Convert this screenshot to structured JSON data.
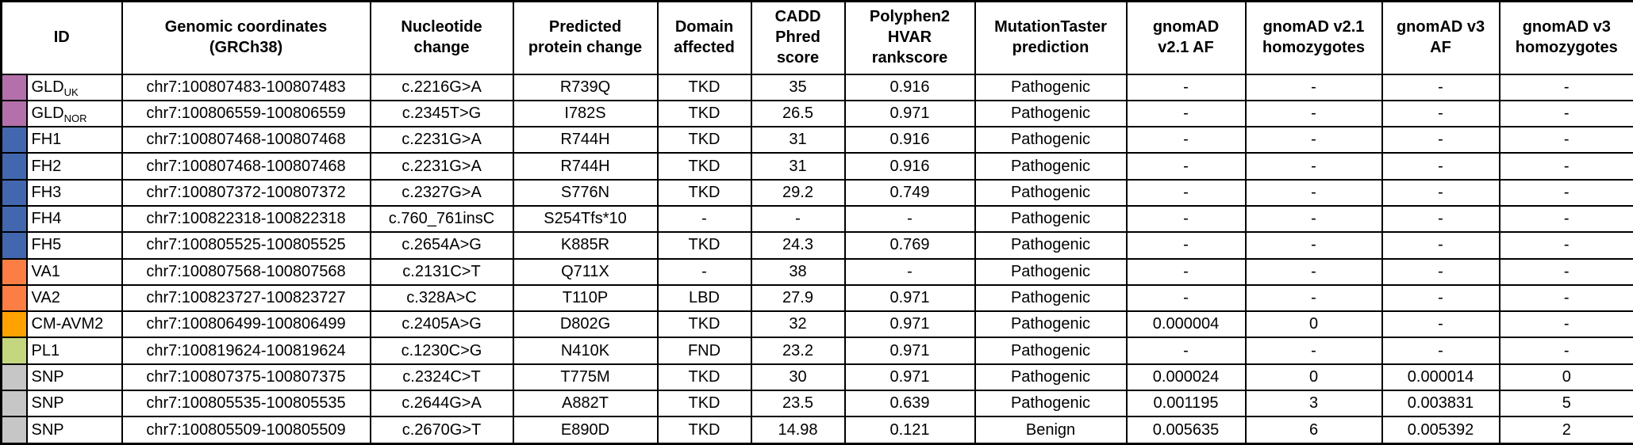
{
  "table": {
    "columns": [
      {
        "key": "id",
        "label": "ID"
      },
      {
        "key": "coords",
        "label": "Genomic coordinates\n(GRCh38)"
      },
      {
        "key": "nucleotide",
        "label": "Nucleotide\nchange"
      },
      {
        "key": "protein",
        "label": "Predicted\nprotein change"
      },
      {
        "key": "domain",
        "label": "Domain\naffected"
      },
      {
        "key": "cadd",
        "label": "CADD\nPhred\nscore"
      },
      {
        "key": "polyphen",
        "label": "Polyphen2\nHVAR\nrankscore"
      },
      {
        "key": "mutationtaster",
        "label": "MutationTaster\nprediction"
      },
      {
        "key": "gnomad_v21_af",
        "label": "gnomAD\nv2.1 AF"
      },
      {
        "key": "gnomad_v21_hom",
        "label": "gnomAD v2.1\nhomozygotes"
      },
      {
        "key": "gnomad_v3_af",
        "label": "gnomAD v3\nAF"
      },
      {
        "key": "gnomad_v3_hom",
        "label": "gnomAD v3\nhomozygotes"
      }
    ],
    "group_colors": {
      "GLD": "#b470ab",
      "FH": "#4267ae",
      "VA": "#fd7e45",
      "CM-AVM2": "#ffa200",
      "PL": "#c4d77f",
      "SNP": "#c6c6c6"
    },
    "rows": [
      {
        "color": "#b470ab",
        "id": "GLD",
        "id_sub": "UK",
        "coords": "chr7:100807483-100807483",
        "nucleotide": "c.2216G>A",
        "protein": "R739Q",
        "domain": "TKD",
        "cadd": "35",
        "polyphen": "0.916",
        "mutationtaster": "Pathogenic",
        "gnomad_v21_af": "-",
        "gnomad_v21_hom": "-",
        "gnomad_v3_af": "-",
        "gnomad_v3_hom": "-"
      },
      {
        "color": "#b470ab",
        "id": "GLD",
        "id_sub": "NOR",
        "coords": "chr7:100806559-100806559",
        "nucleotide": "c.2345T>G",
        "protein": "I782S",
        "domain": "TKD",
        "cadd": "26.5",
        "polyphen": "0.971",
        "mutationtaster": "Pathogenic",
        "gnomad_v21_af": "-",
        "gnomad_v21_hom": "-",
        "gnomad_v3_af": "-",
        "gnomad_v3_hom": "-"
      },
      {
        "color": "#4267ae",
        "id": "FH1",
        "id_sub": "",
        "coords": "chr7:100807468-100807468",
        "nucleotide": "c.2231G>A",
        "protein": "R744H",
        "domain": "TKD",
        "cadd": "31",
        "polyphen": "0.916",
        "mutationtaster": "Pathogenic",
        "gnomad_v21_af": "-",
        "gnomad_v21_hom": "-",
        "gnomad_v3_af": "-",
        "gnomad_v3_hom": "-"
      },
      {
        "color": "#4267ae",
        "id": "FH2",
        "id_sub": "",
        "coords": "chr7:100807468-100807468",
        "nucleotide": "c.2231G>A",
        "protein": "R744H",
        "domain": "TKD",
        "cadd": "31",
        "polyphen": "0.916",
        "mutationtaster": "Pathogenic",
        "gnomad_v21_af": "-",
        "gnomad_v21_hom": "-",
        "gnomad_v3_af": "-",
        "gnomad_v3_hom": "-"
      },
      {
        "color": "#4267ae",
        "id": "FH3",
        "id_sub": "",
        "coords": "chr7:100807372-100807372",
        "nucleotide": "c.2327G>A",
        "protein": "S776N",
        "domain": "TKD",
        "cadd": "29.2",
        "polyphen": "0.749",
        "mutationtaster": "Pathogenic",
        "gnomad_v21_af": "-",
        "gnomad_v21_hom": "-",
        "gnomad_v3_af": "-",
        "gnomad_v3_hom": "-"
      },
      {
        "color": "#4267ae",
        "id": "FH4",
        "id_sub": "",
        "coords": "chr7:100822318-100822318",
        "nucleotide": "c.760_761insC",
        "protein": "S254Tfs*10",
        "domain": "-",
        "cadd": "-",
        "polyphen": "-",
        "mutationtaster": "Pathogenic",
        "gnomad_v21_af": "-",
        "gnomad_v21_hom": "-",
        "gnomad_v3_af": "-",
        "gnomad_v3_hom": "-"
      },
      {
        "color": "#4267ae",
        "id": "FH5",
        "id_sub": "",
        "coords": "chr7:100805525-100805525",
        "nucleotide": "c.2654A>G",
        "protein": "K885R",
        "domain": "TKD",
        "cadd": "24.3",
        "polyphen": "0.769",
        "mutationtaster": "Pathogenic",
        "gnomad_v21_af": "-",
        "gnomad_v21_hom": "-",
        "gnomad_v3_af": "-",
        "gnomad_v3_hom": "-"
      },
      {
        "color": "#fd7e45",
        "id": "VA1",
        "id_sub": "",
        "coords": "chr7:100807568-100807568",
        "nucleotide": "c.2131C>T",
        "protein": "Q711X",
        "domain": "-",
        "cadd": "38",
        "polyphen": "-",
        "mutationtaster": "Pathogenic",
        "gnomad_v21_af": "-",
        "gnomad_v21_hom": "-",
        "gnomad_v3_af": "-",
        "gnomad_v3_hom": "-"
      },
      {
        "color": "#fd7e45",
        "id": "VA2",
        "id_sub": "",
        "coords": "chr7:100823727-100823727",
        "nucleotide": "c.328A>C",
        "protein": "T110P",
        "domain": "LBD",
        "cadd": "27.9",
        "polyphen": "0.971",
        "mutationtaster": "Pathogenic",
        "gnomad_v21_af": "-",
        "gnomad_v21_hom": "-",
        "gnomad_v3_af": "-",
        "gnomad_v3_hom": "-"
      },
      {
        "color": "#ffa200",
        "id": "CM-AVM2",
        "id_sub": "",
        "coords": "chr7:100806499-100806499",
        "nucleotide": "c.2405A>G",
        "protein": "D802G",
        "domain": "TKD",
        "cadd": "32",
        "polyphen": "0.971",
        "mutationtaster": "Pathogenic",
        "gnomad_v21_af": "0.000004",
        "gnomad_v21_hom": "0",
        "gnomad_v3_af": "-",
        "gnomad_v3_hom": "-"
      },
      {
        "color": "#c4d77f",
        "id": "PL1",
        "id_sub": "",
        "coords": "chr7:100819624-100819624",
        "nucleotide": "c.1230C>G",
        "protein": "N410K",
        "domain": "FND",
        "cadd": "23.2",
        "polyphen": "0.971",
        "mutationtaster": "Pathogenic",
        "gnomad_v21_af": "-",
        "gnomad_v21_hom": "-",
        "gnomad_v3_af": "-",
        "gnomad_v3_hom": "-"
      },
      {
        "color": "#c6c6c6",
        "id": "SNP",
        "id_sub": "",
        "coords": "chr7:100807375-100807375",
        "nucleotide": "c.2324C>T",
        "protein": "T775M",
        "domain": "TKD",
        "cadd": "30",
        "polyphen": "0.971",
        "mutationtaster": "Pathogenic",
        "gnomad_v21_af": "0.000024",
        "gnomad_v21_hom": "0",
        "gnomad_v3_af": "0.000014",
        "gnomad_v3_hom": "0"
      },
      {
        "color": "#c6c6c6",
        "id": "SNP",
        "id_sub": "",
        "coords": "chr7:100805535-100805535",
        "nucleotide": "c.2644G>A",
        "protein": "A882T",
        "domain": "TKD",
        "cadd": "23.5",
        "polyphen": "0.639",
        "mutationtaster": "Pathogenic",
        "gnomad_v21_af": "0.001195",
        "gnomad_v21_hom": "3",
        "gnomad_v3_af": "0.003831",
        "gnomad_v3_hom": "5"
      },
      {
        "color": "#c6c6c6",
        "id": "SNP",
        "id_sub": "",
        "coords": "chr7:100805509-100805509",
        "nucleotide": "c.2670G>T",
        "protein": "E890D",
        "domain": "TKD",
        "cadd": "14.98",
        "polyphen": "0.121",
        "mutationtaster": "Benign",
        "gnomad_v21_af": "0.005635",
        "gnomad_v21_hom": "6",
        "gnomad_v3_af": "0.005392",
        "gnomad_v3_hom": "2"
      }
    ]
  }
}
